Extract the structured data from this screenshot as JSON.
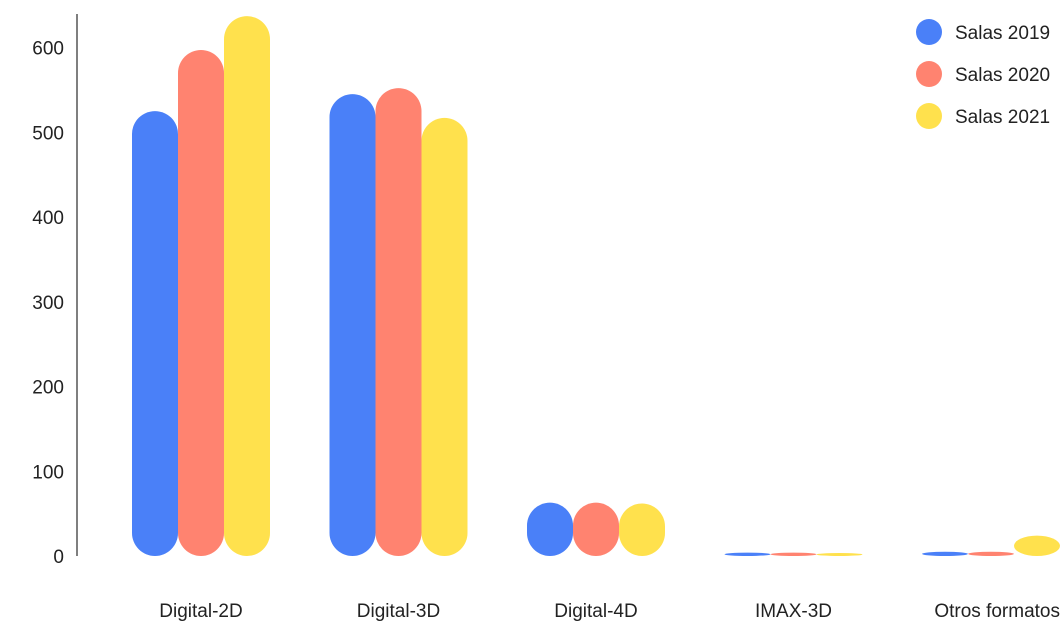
{
  "chart_data": {
    "type": "bar",
    "categories": [
      "Digital-2D",
      "Digital-3D",
      "Digital-4D",
      "IMAX-3D",
      "Otros formatos"
    ],
    "series": [
      {
        "name": "Salas 2019",
        "color": "#4a80f8",
        "values": [
          525,
          545,
          63,
          4,
          5
        ]
      },
      {
        "name": "Salas 2020",
        "color": "#ff8370",
        "values": [
          597,
          552,
          63,
          4,
          5
        ]
      },
      {
        "name": "Salas 2021",
        "color": "#ffe14d",
        "values": [
          637,
          517,
          62,
          3,
          24
        ]
      }
    ],
    "ylim": [
      0,
      640
    ],
    "yticks": [
      0,
      100,
      200,
      300,
      400,
      500,
      600
    ],
    "legend_position": "top-right",
    "grid": false
  }
}
